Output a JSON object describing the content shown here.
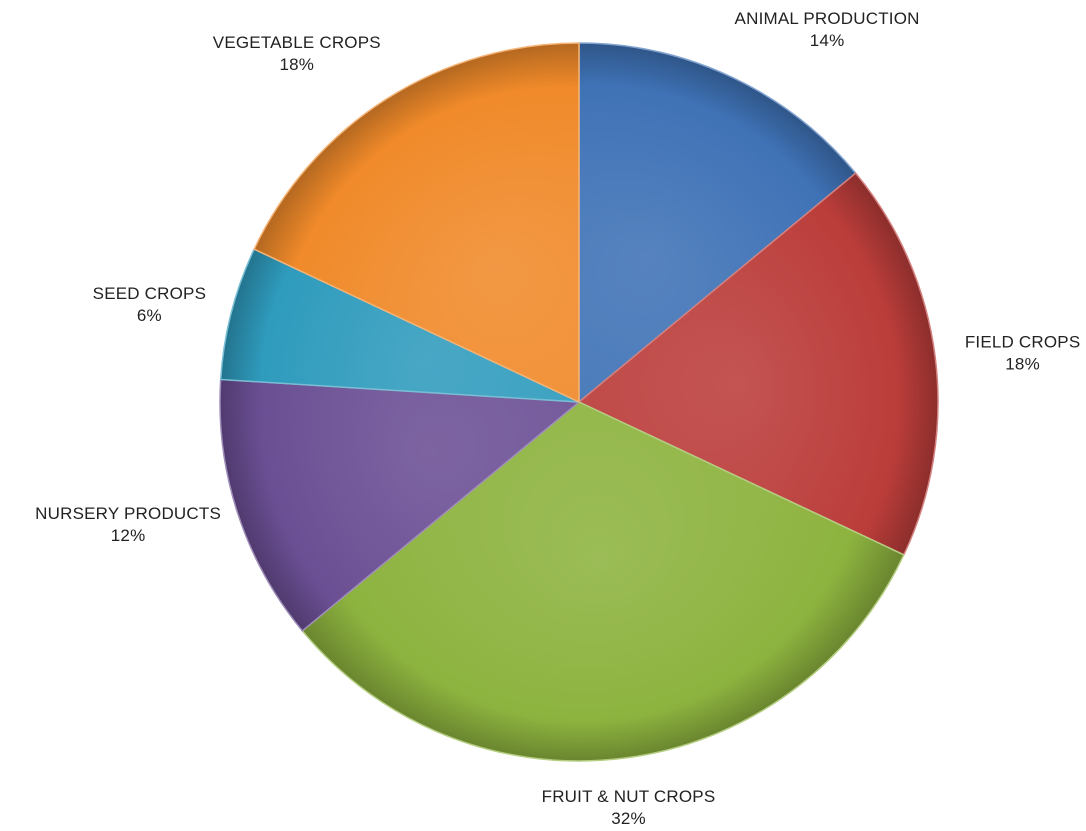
{
  "chart_data": {
    "type": "pie",
    "title": "",
    "legend": "none",
    "data_labels": "outside",
    "slices": [
      {
        "label": "ANIMAL PRODUCTION",
        "value": 14,
        "value_label": "14%",
        "color": "#3f72b6"
      },
      {
        "label": "FIELD CROPS",
        "value": 18,
        "value_label": "18%",
        "color": "#bb3d3a"
      },
      {
        "label": "FRUIT & NUT CROPS",
        "value": 32,
        "value_label": "32%",
        "color": "#8db33f"
      },
      {
        "label": "NURSERY PRODUCTS",
        "value": 12,
        "value_label": "12%",
        "color": "#6b4f94"
      },
      {
        "label": "SEED CROPS",
        "value": 6,
        "value_label": "6%",
        "color": "#2f9bbd"
      },
      {
        "label": "VEGETABLE CROPS",
        "value": 18,
        "value_label": "18%",
        "color": "#f08a2a"
      }
    ]
  }
}
